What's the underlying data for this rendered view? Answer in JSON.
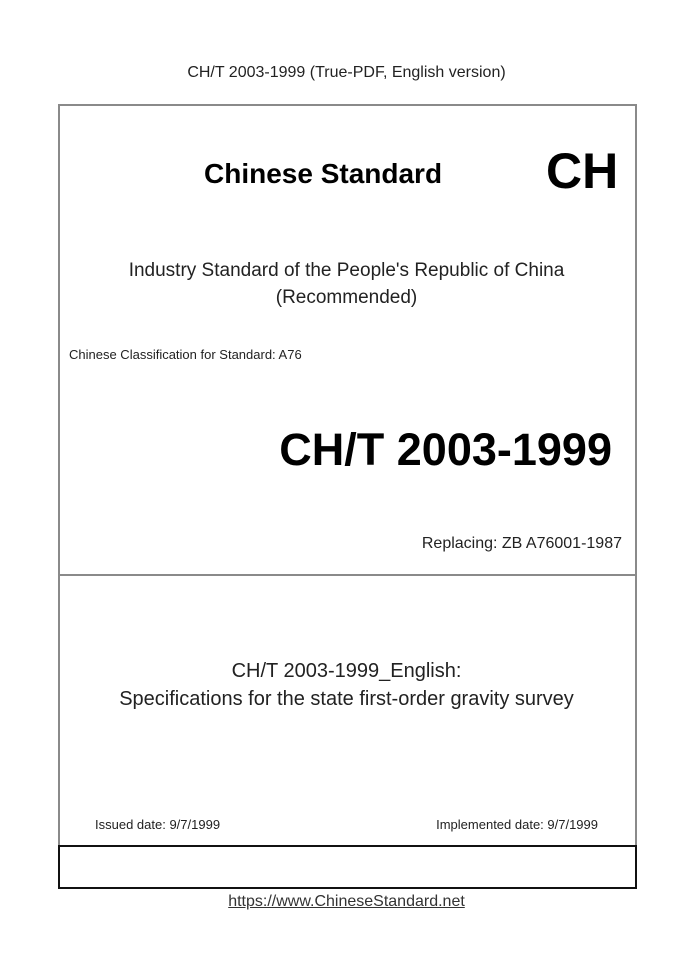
{
  "header": "CH/T 2003-1999 (True-PDF, English version)",
  "cover": {
    "title": "Chinese Standard",
    "logo_code": "CH",
    "industry_line1": "Industry Standard of the People's Republic of China",
    "industry_line2": "(Recommended)",
    "classification": "Chinese Classification for Standard: A76",
    "standard_code": "CH/T 2003-1999",
    "replacing": "Replacing: ZB A76001-1987",
    "doc_title_line1": "CH/T 2003-1999_English:",
    "doc_title_line2": "Specifications for the state first-order gravity survey",
    "issued": "Issued date: 9/7/1999",
    "implemented": "Implemented date: 9/7/1999"
  },
  "footer": {
    "link": "https://www.ChineseStandard.net"
  }
}
